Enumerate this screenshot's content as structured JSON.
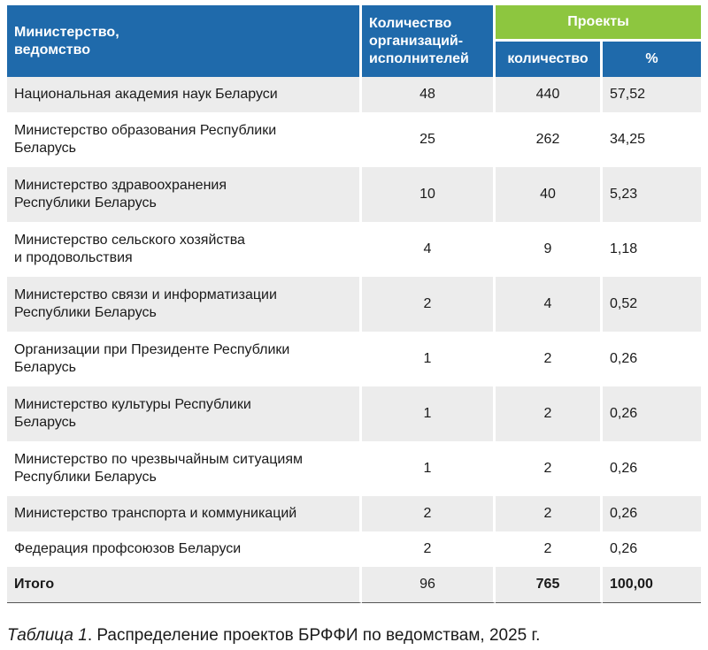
{
  "header": {
    "ministry": "Министерство,\nведомство",
    "org_count": "Количество\nорганизаций-\nисполнителей",
    "projects": "Проекты",
    "projects_count": "количество",
    "projects_pct": "%"
  },
  "rows": [
    {
      "name": "Национальная академия наук Беларуси",
      "orgs": "48",
      "count": "440",
      "pct": "57,52"
    },
    {
      "name": "Министерство образования Республики\nБеларусь",
      "orgs": "25",
      "count": "262",
      "pct": "34,25"
    },
    {
      "name": "Министерство здравоохранения\nРеспублики Беларусь",
      "orgs": "10",
      "count": "40",
      "pct": "5,23"
    },
    {
      "name": "Министерство сельского хозяйства\nи продовольствия",
      "orgs": "4",
      "count": "9",
      "pct": "1,18"
    },
    {
      "name": "Министерство связи и информатизации\nРеспублики Беларусь",
      "orgs": "2",
      "count": "4",
      "pct": "0,52"
    },
    {
      "name": "Организации при Президенте Республики\nБеларусь",
      "orgs": "1",
      "count": "2",
      "pct": "0,26"
    },
    {
      "name": "Министерство культуры Республики\nБеларусь",
      "orgs": "1",
      "count": "2",
      "pct": "0,26"
    },
    {
      "name": "Министерство по чрезвычайным ситуациям\nРеспублики Беларусь",
      "orgs": "1",
      "count": "2",
      "pct": "0,26"
    },
    {
      "name": "Министерство транспорта и коммуникаций",
      "orgs": "2",
      "count": "2",
      "pct": "0,26"
    },
    {
      "name": "Федерация профсоюзов Беларуси",
      "orgs": "2",
      "count": "2",
      "pct": "0,26"
    }
  ],
  "total": {
    "name": "Итого",
    "orgs": "96",
    "count": "765",
    "pct": "100,00"
  },
  "caption": {
    "label": "Таблица 1",
    "text": ". Распределение проектов БРФФИ по ведомствам, 2025 г."
  },
  "colors": {
    "header_blue": "#1f6aab",
    "header_green": "#8dc63f",
    "row_stripe": "#ececec"
  }
}
